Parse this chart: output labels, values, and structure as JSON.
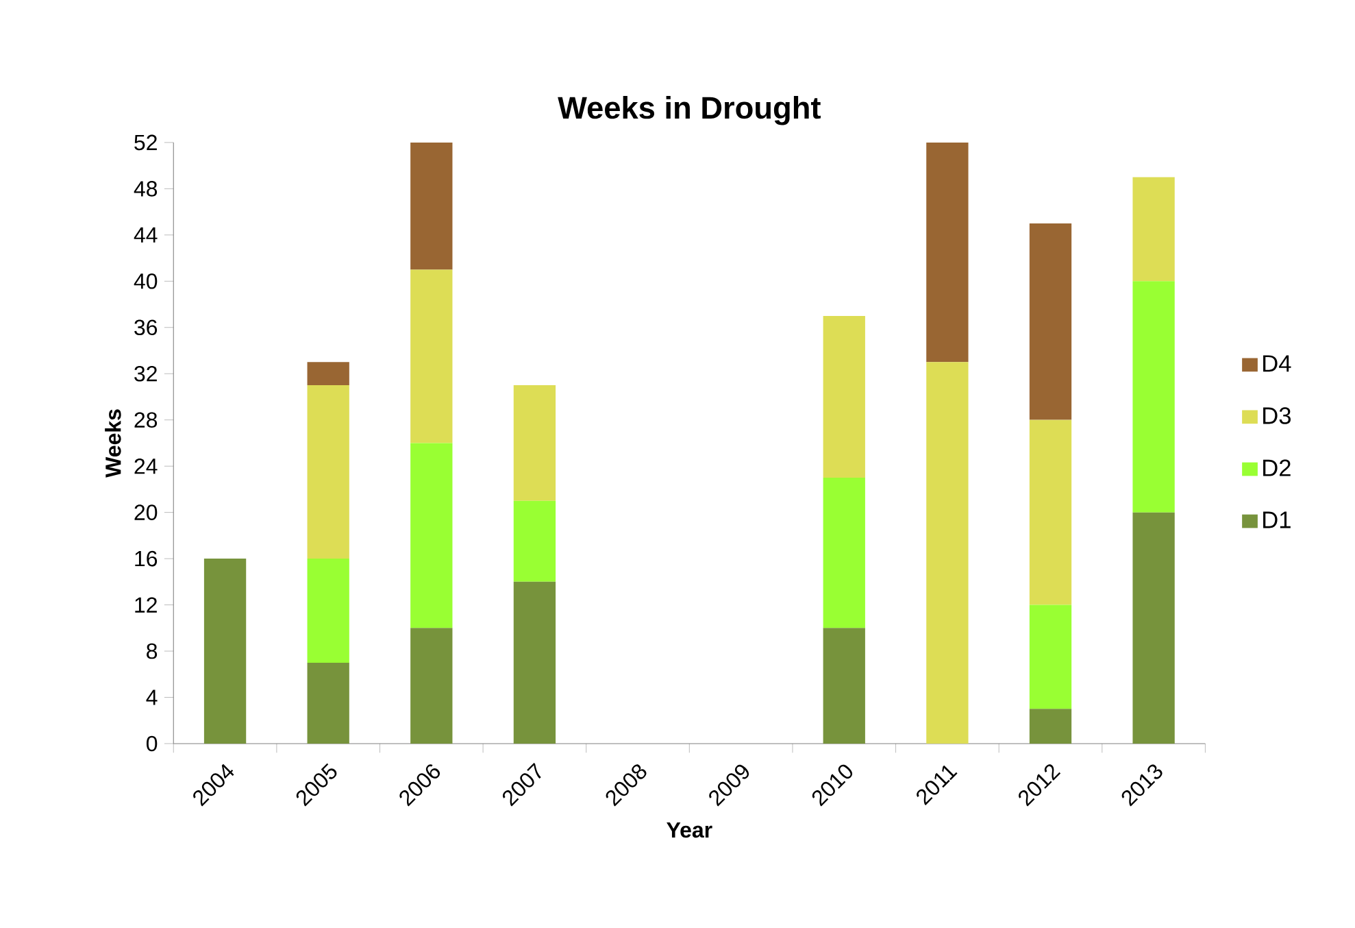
{
  "chart_data": {
    "type": "bar",
    "stacked": true,
    "title": "Weeks in Drought",
    "xlabel": "Year",
    "ylabel": "Weeks",
    "categories": [
      "2004",
      "2005",
      "2006",
      "2007",
      "2008",
      "2009",
      "2010",
      "2011",
      "2012",
      "2013"
    ],
    "series": [
      {
        "name": "D1",
        "color": "#77933c",
        "values": [
          16,
          7,
          10,
          14,
          0,
          0,
          10,
          0,
          3,
          20
        ]
      },
      {
        "name": "D2",
        "color": "#99ff33",
        "values": [
          0,
          9,
          16,
          7,
          0,
          0,
          13,
          0,
          9,
          20
        ]
      },
      {
        "name": "D3",
        "color": "#dddd55",
        "values": [
          0,
          15,
          15,
          10,
          0,
          0,
          14,
          33,
          16,
          9
        ]
      },
      {
        "name": "D4",
        "color": "#996633",
        "values": [
          0,
          2,
          11,
          0,
          0,
          0,
          0,
          19,
          17,
          0
        ]
      }
    ],
    "ylim": [
      0,
      52
    ],
    "yticks": [
      0,
      4,
      8,
      12,
      16,
      20,
      24,
      28,
      32,
      36,
      40,
      44,
      48,
      52
    ],
    "grid": false,
    "legend": "right"
  }
}
